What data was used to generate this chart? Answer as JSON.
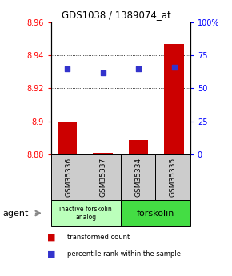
{
  "title": "GDS1038 / 1389074_at",
  "samples": [
    "GSM35336",
    "GSM35337",
    "GSM35334",
    "GSM35335"
  ],
  "bar_values": [
    8.9,
    8.881,
    8.889,
    8.947
  ],
  "bar_baseline": 8.88,
  "percentile_values": [
    65,
    62,
    65,
    66
  ],
  "ylim_left": [
    8.88,
    8.96
  ],
  "ylim_right": [
    0,
    100
  ],
  "yticks_left": [
    8.88,
    8.9,
    8.92,
    8.94,
    8.96
  ],
  "yticks_right": [
    0,
    25,
    50,
    75,
    100
  ],
  "bar_color": "#cc0000",
  "dot_color": "#3333cc",
  "group1_label": "inactive forskolin\nanalog",
  "group2_label": "forskolin",
  "group1_color": "#bbffbb",
  "group2_color": "#44dd44",
  "sample_box_color": "#cccccc",
  "agent_label": "agent",
  "legend1": "transformed count",
  "legend2": "percentile rank within the sample",
  "bg_color": "#ffffff"
}
